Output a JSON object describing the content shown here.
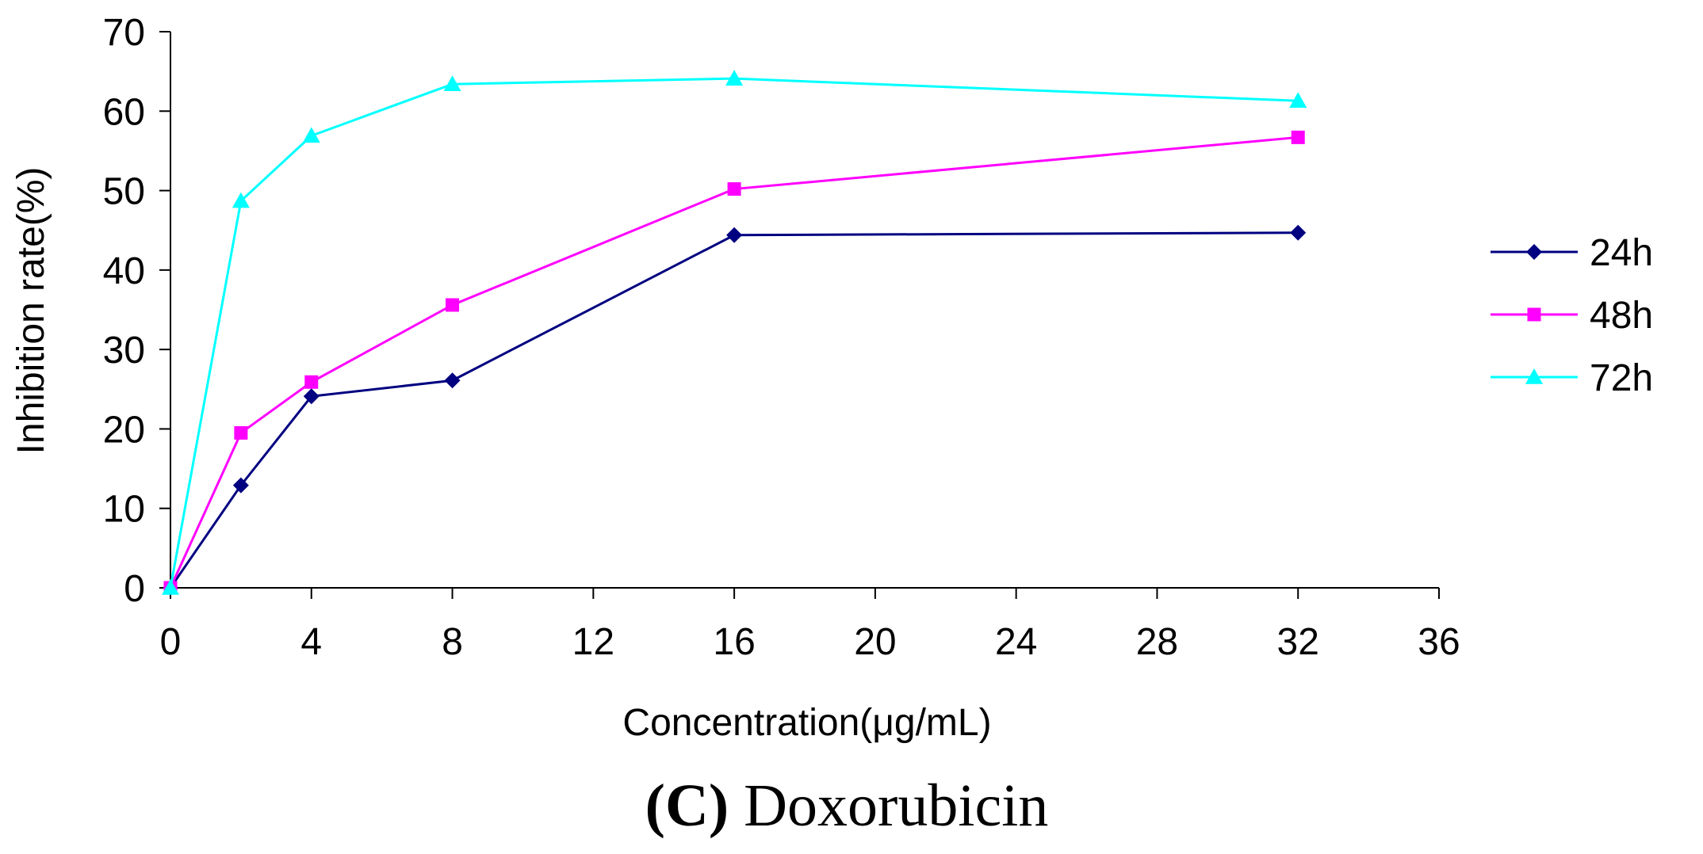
{
  "chart_data": {
    "type": "line",
    "title": "(C) Doxorubicin",
    "title_parts": {
      "open_paren": "(",
      "letter": "C",
      "close_paren": ")",
      "rest": " Doxorubicin"
    },
    "xlabel": "Concentration(μg/mL)",
    "ylabel": "Inhibition rate(%)",
    "xlim": [
      0,
      36
    ],
    "ylim": [
      0,
      70
    ],
    "x_ticks": [
      0,
      4,
      8,
      12,
      16,
      20,
      24,
      28,
      32,
      36
    ],
    "y_ticks": [
      0,
      10,
      20,
      30,
      40,
      50,
      60,
      70
    ],
    "x": [
      0,
      2,
      4,
      8,
      16,
      32
    ],
    "grid": false,
    "legend_position": "right",
    "series": [
      {
        "name": "24h",
        "color": "#000080",
        "marker": "diamond",
        "values": [
          0,
          12.9,
          24.1,
          26.1,
          44.4,
          44.7
        ]
      },
      {
        "name": "48h",
        "color": "#ff00ff",
        "marker": "square",
        "values": [
          0,
          19.5,
          25.9,
          35.6,
          50.2,
          56.7
        ]
      },
      {
        "name": "72h",
        "color": "#00ffff",
        "marker": "triangle",
        "values": [
          0,
          48.7,
          56.9,
          63.4,
          64.1,
          61.3
        ]
      }
    ]
  }
}
